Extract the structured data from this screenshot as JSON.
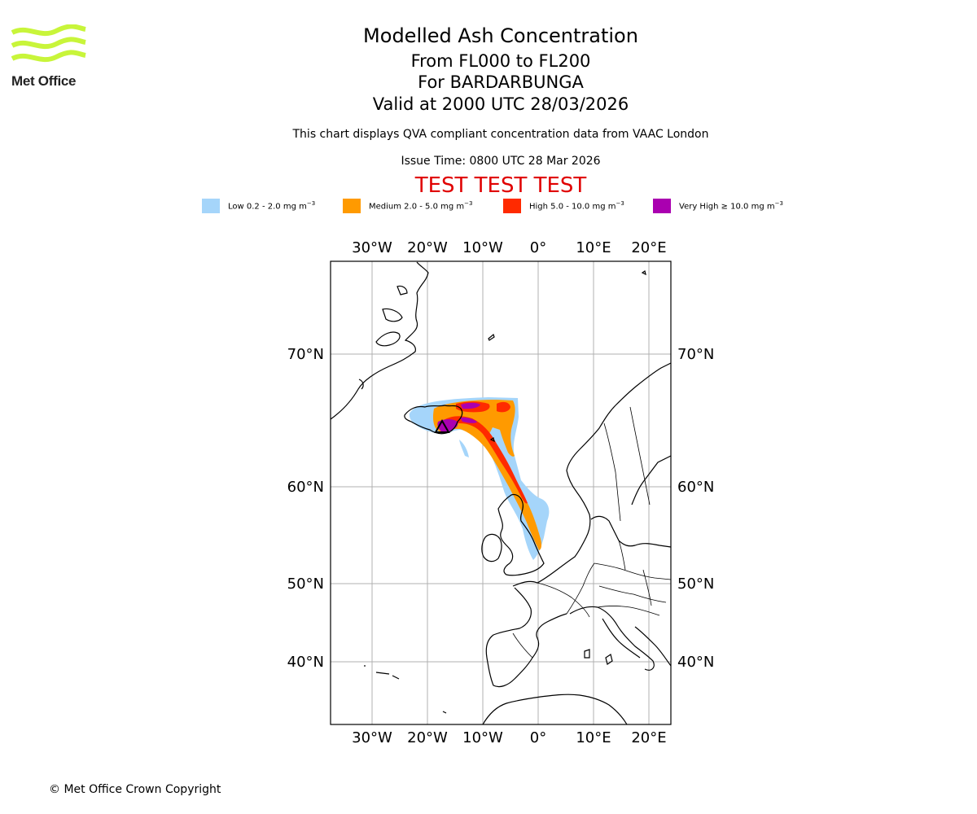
{
  "brand": {
    "name": "Met Office",
    "logo_color": "#c8f53a"
  },
  "header": {
    "title": "Modelled Ash Concentration",
    "levels": "From FL000 to FL200",
    "volcano": "For BARDARBUNGA",
    "valid": "Valid at 2000 UTC 28/03/2026",
    "description": "This chart displays QVA compliant concentration data from VAAC London",
    "issue_time": "Issue Time: 0800 UTC 28 Mar 2026",
    "test_banner": "TEST TEST TEST"
  },
  "legend": [
    {
      "label": "Low 0.2 - 2.0 mg m",
      "color": "#a5d5fa"
    },
    {
      "label": "Medium 2.0 - 5.0 mg m",
      "color": "#ff9a00"
    },
    {
      "label": "High 5.0 - 10.0 mg m",
      "color": "#ff2a00"
    },
    {
      "label": "Very High ≥ 10.0 mg m",
      "color": "#aa00b0"
    }
  ],
  "legend_unit_exponent": "−3",
  "map": {
    "lon_labels": [
      "30°W",
      "20°W",
      "10°W",
      "0°",
      "10°E",
      "20°E"
    ],
    "lat_labels": [
      "70°N",
      "60°N",
      "50°N",
      "40°N"
    ]
  },
  "footer": {
    "copyright": "© Met Office Crown Copyright"
  }
}
